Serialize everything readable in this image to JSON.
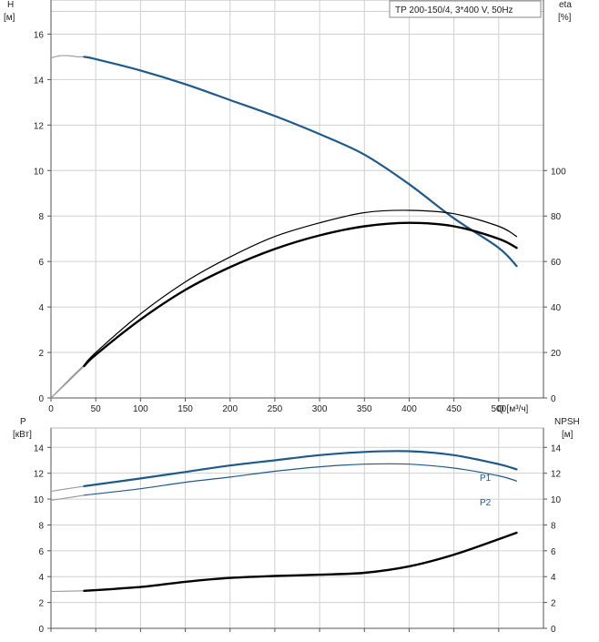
{
  "colors": {
    "head_curve": "#1f5a8c",
    "power_curve": "#1f5a8c",
    "efficiency_curve": "#000000",
    "npsh_curve": "#000000",
    "extension": "#999999",
    "grid": "#d0d0d0"
  },
  "chart_data": [
    {
      "type": "line",
      "legend_box": "TP 200-150/4, 3*400 V, 50Hz",
      "left_axis_label": "H",
      "left_axis_unit": "[м]",
      "right_axis_label": "eta",
      "right_axis_unit": "[%]",
      "xlabel": "Q [м³/ч]",
      "xlim": [
        0,
        550
      ],
      "x_ticks": [
        "0",
        "50",
        "100",
        "150",
        "200",
        "250",
        "300",
        "350",
        "400",
        "450",
        "500"
      ],
      "ylim_left": [
        0,
        17.5
      ],
      "y_ticks_left": [
        "0",
        "2",
        "4",
        "6",
        "8",
        "10",
        "12",
        "14",
        "16"
      ],
      "ylim_right": [
        0,
        175
      ],
      "y_ticks_right": [
        "0",
        "20",
        "40",
        "60",
        "80",
        "100"
      ],
      "grid": true,
      "series": [
        {
          "key": "H",
          "axis": "left",
          "style": "blue-thick",
          "x": [
            37,
            50,
            100,
            150,
            200,
            250,
            300,
            350,
            400,
            450,
            500,
            520
          ],
          "y": [
            15.0,
            14.9,
            14.4,
            13.8,
            13.1,
            12.4,
            11.6,
            10.7,
            9.4,
            7.9,
            6.6,
            5.8
          ],
          "extension": {
            "x": [
              0,
              10,
              20,
              30,
              37
            ],
            "y": [
              14.95,
              15.05,
              15.05,
              15.0,
              15.0
            ]
          }
        },
        {
          "key": "eta_thin",
          "axis": "right",
          "style": "black-thin",
          "x": [
            37,
            50,
            100,
            150,
            200,
            250,
            300,
            350,
            400,
            450,
            500,
            520
          ],
          "y": [
            14.5,
            20,
            37,
            51,
            62,
            71,
            77,
            81.5,
            82.5,
            81,
            75.5,
            71
          ],
          "extension": {
            "x": [
              0,
              20,
              37
            ],
            "y": [
              0,
              8,
              14.5
            ]
          }
        },
        {
          "key": "eta_thick",
          "axis": "right",
          "style": "black-thick",
          "x": [
            37,
            50,
            100,
            150,
            200,
            250,
            300,
            350,
            400,
            450,
            500,
            520
          ],
          "y": [
            14,
            19,
            34.5,
            47.5,
            57.5,
            65.5,
            71.5,
            75.5,
            77,
            75.5,
            70,
            66
          ],
          "extension": {
            "x": [
              0,
              20,
              37
            ],
            "y": [
              0,
              7.5,
              14
            ]
          }
        }
      ]
    },
    {
      "type": "line",
      "left_axis_label": "P",
      "left_axis_unit": "[кВт]",
      "right_axis_label": "NPSH",
      "right_axis_unit": "[м]",
      "xlim": [
        0,
        550
      ],
      "ylim_left": [
        0,
        15.5
      ],
      "y_ticks_left": [
        "0",
        "2",
        "4",
        "6",
        "8",
        "10",
        "12",
        "14"
      ],
      "ylim_right": [
        0,
        15.5
      ],
      "y_ticks_right": [
        "0",
        "2",
        "4",
        "6",
        "8",
        "10",
        "12",
        "14"
      ],
      "grid": true,
      "series": [
        {
          "name": "P1",
          "axis": "left",
          "style": "blue-thick",
          "x": [
            37,
            100,
            150,
            200,
            250,
            300,
            350,
            400,
            450,
            500,
            520
          ],
          "y": [
            11.0,
            11.6,
            12.1,
            12.6,
            13.0,
            13.4,
            13.65,
            13.7,
            13.4,
            12.7,
            12.3
          ],
          "extension": {
            "x": [
              0,
              37
            ],
            "y": [
              10.6,
              11.0
            ]
          }
        },
        {
          "name": "P2",
          "axis": "left",
          "style": "blue-thin",
          "x": [
            37,
            100,
            150,
            200,
            250,
            300,
            350,
            400,
            450,
            500,
            520
          ],
          "y": [
            10.3,
            10.8,
            11.3,
            11.7,
            12.15,
            12.5,
            12.7,
            12.7,
            12.4,
            11.8,
            11.4
          ],
          "extension": {
            "x": [
              0,
              37
            ],
            "y": [
              9.9,
              10.3
            ]
          }
        },
        {
          "key": "NPSH",
          "axis": "right",
          "style": "black-thick",
          "x": [
            37,
            100,
            150,
            200,
            250,
            300,
            350,
            400,
            450,
            500,
            520
          ],
          "y": [
            2.9,
            3.2,
            3.6,
            3.9,
            4.05,
            4.15,
            4.3,
            4.8,
            5.7,
            6.9,
            7.4
          ],
          "extension": {
            "x": [
              0,
              37
            ],
            "y": [
              2.85,
              2.9
            ]
          }
        }
      ]
    }
  ]
}
